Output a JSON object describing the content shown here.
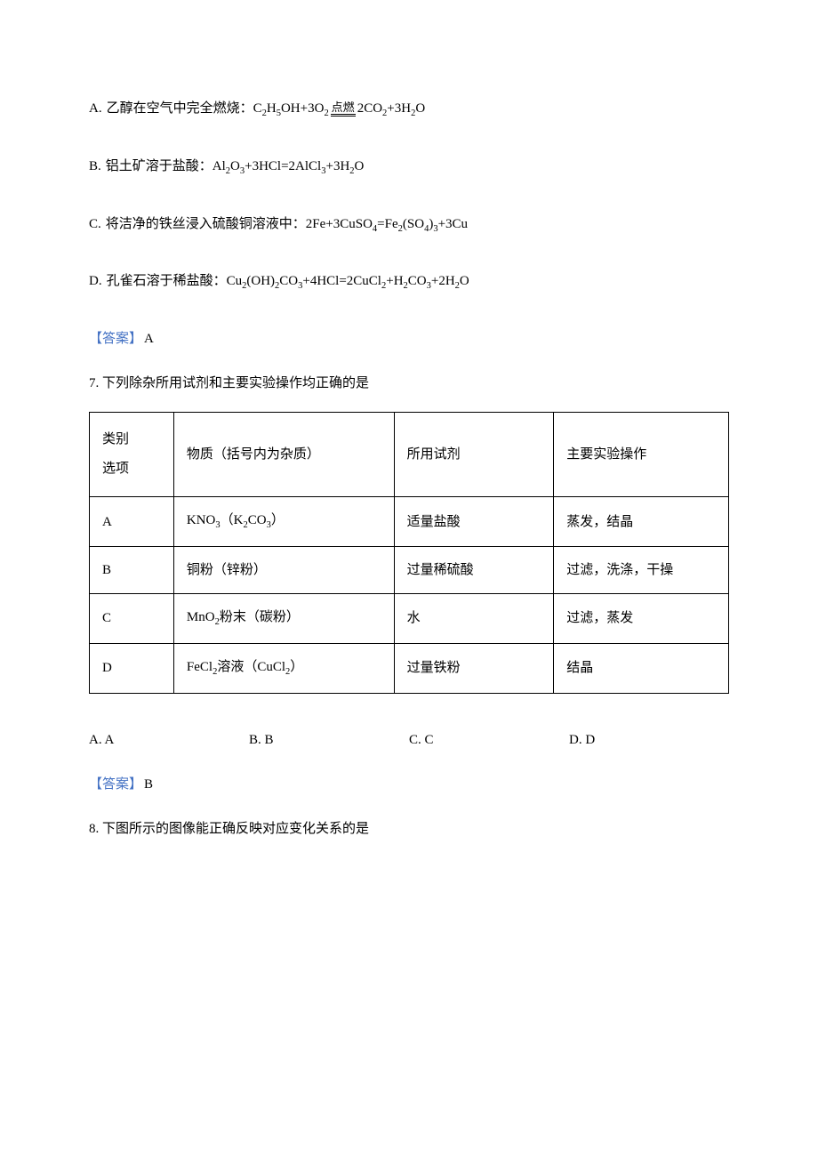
{
  "optionA": {
    "label": "A.",
    "text": "乙醇在空气中完全燃烧：",
    "formula_left": "C",
    "formula_parts": [
      "C",
      "2",
      "H",
      "5",
      "OH+3O",
      "2"
    ],
    "arrow_top": "点燃",
    "formula_right_parts": [
      "2CO",
      "2",
      "+3H",
      "2",
      "O"
    ]
  },
  "optionB": {
    "label": "B.",
    "text": "铝土矿溶于盐酸：",
    "formula": "Al₂O₃+3HCl=2AlCl₃+3H₂O"
  },
  "optionC": {
    "label": "C.",
    "text": "将洁净的铁丝浸入硫酸铜溶液中：",
    "formula": "2Fe+3CuSO₄=Fe₂(SO₄)₃+3Cu"
  },
  "optionD": {
    "label": "D.",
    "text": "孔雀石溶于稀盐酸：",
    "formula": "Cu₂(OH)₂CO₃+4HCl=2CuCl₂+H₂CO₃+2H₂O"
  },
  "answer6": {
    "label": "【答案】",
    "value": "A"
  },
  "question7": {
    "number": "7.",
    "text": "下列除杂所用试剂和主要实验操作均正确的是"
  },
  "table": {
    "header": {
      "col1_line1": "类别",
      "col1_line2": "选项",
      "col2": "物质（括号内为杂质）",
      "col3": "所用试剂",
      "col4": "主要实验操作"
    },
    "rows": [
      {
        "c1": "A",
        "c2": "KNO₃（K₂CO₃）",
        "c3": "适量盐酸",
        "c4": "蒸发，结晶"
      },
      {
        "c1": "B",
        "c2": "铜粉（锌粉）",
        "c3": "过量稀硫酸",
        "c4": "过滤，洗涤，干操"
      },
      {
        "c1": "C",
        "c2": "MnO₂粉末（碳粉）",
        "c3": "水",
        "c4": "过滤，蒸发"
      },
      {
        "c1": "D",
        "c2": "FeCl₂溶液（CuCl₂）",
        "c3": "过量铁粉",
        "c4": "结晶"
      }
    ]
  },
  "options7": {
    "a": "A. A",
    "b": "B. B",
    "c": "C. C",
    "d": "D. D"
  },
  "answer7": {
    "label": "【答案】",
    "value": "B"
  },
  "question8": {
    "number": "8.",
    "text": "下图所示的图像能正确反映对应变化关系的是"
  }
}
